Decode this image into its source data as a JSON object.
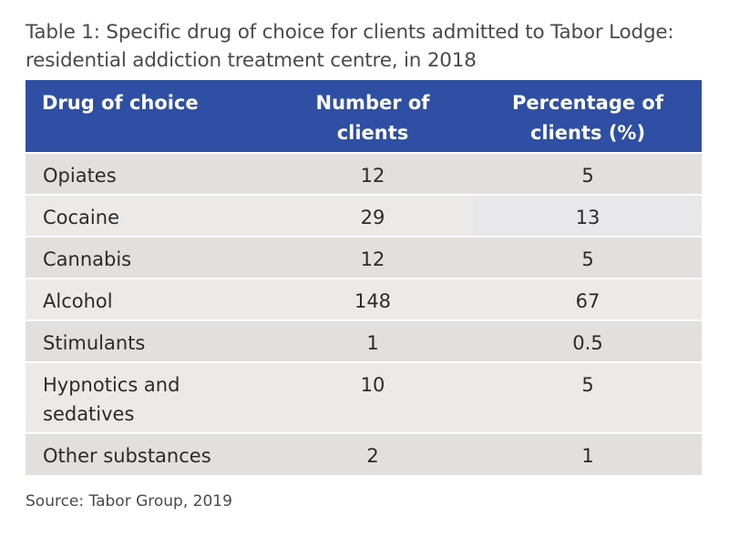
{
  "title_line1": "Table 1: Specific drug of choice for clients admitted to Tabor Lodge:",
  "title_line2": "residential addiction treatment centre, in 2018",
  "headers": {
    "drug": "Drug of choice",
    "number_line1": "Number of",
    "number_line2": "clients",
    "percent_line1": "Percentage of",
    "percent_line2": "clients (%)"
  },
  "rows": [
    {
      "drug": "Opiates",
      "number": "12",
      "percent": "5"
    },
    {
      "drug": "Cocaine",
      "number": "29",
      "percent": "13"
    },
    {
      "drug": "Cannabis",
      "number": "12",
      "percent": "5"
    },
    {
      "drug": "Alcohol",
      "number": "148",
      "percent": "67"
    },
    {
      "drug": "Stimulants",
      "number": "1",
      "percent": "0.5"
    },
    {
      "drug_line1": "Hypnotics and",
      "drug_line2": "sedatives",
      "number": "10",
      "percent": "5"
    },
    {
      "drug": "Other substances",
      "number": "2",
      "percent": "1"
    }
  ],
  "source": "Source: Tabor Group, 2019",
  "colors": {
    "header_background": "#2e4fa3",
    "header_text": "#ffffff",
    "row_odd": "#e2dfdc",
    "row_even": "#ece9e7"
  }
}
